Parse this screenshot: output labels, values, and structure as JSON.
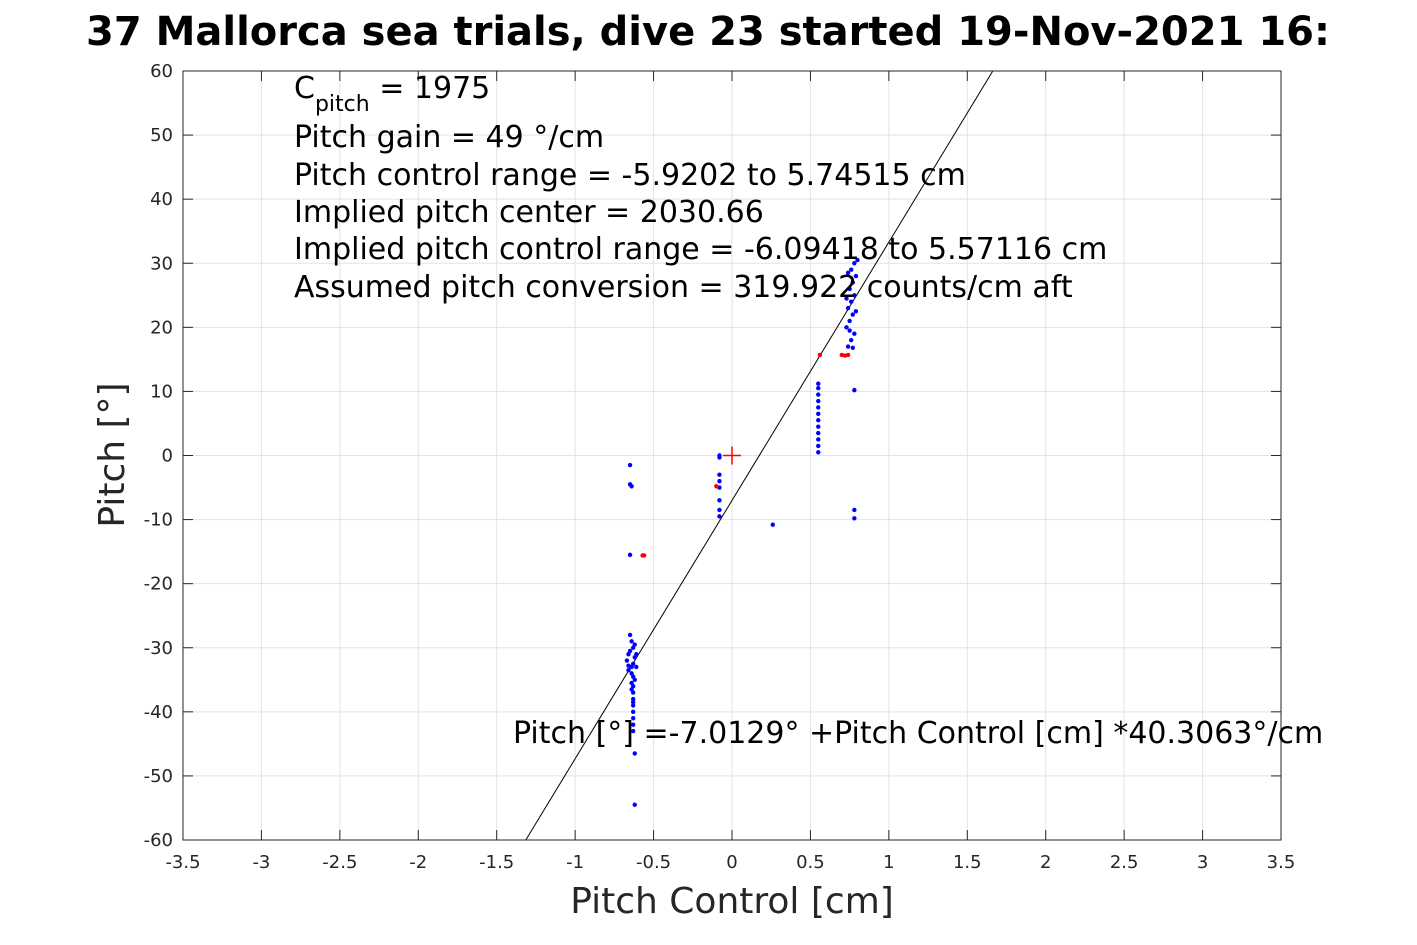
{
  "chart_data": {
    "type": "scatter",
    "title": "37 Mallorca sea trials, dive 23 started 19-Nov-2021 16:",
    "xlabel": "Pitch Control [cm]",
    "ylabel": "Pitch [°]",
    "xlim": [
      -3.5,
      3.5
    ],
    "ylim": [
      -60,
      60
    ],
    "xticks": [
      -3.5,
      -3,
      -2.5,
      -2,
      -1.5,
      -1,
      -0.5,
      0,
      0.5,
      1,
      1.5,
      2,
      2.5,
      3,
      3.5
    ],
    "xtick_labels": [
      "-3.5",
      "-3",
      "-2.5",
      "-2",
      "-1.5",
      "-1",
      "-0.5",
      "0",
      "0.5",
      "1",
      "1.5",
      "2",
      "2.5",
      "3",
      "3.5"
    ],
    "yticks": [
      -60,
      -50,
      -40,
      -30,
      -20,
      -10,
      0,
      10,
      20,
      30,
      40,
      50,
      60
    ],
    "ytick_labels": [
      "-60",
      "-50",
      "-40",
      "-30",
      "-20",
      "-10",
      "0",
      "10",
      "20",
      "30",
      "40",
      "50",
      "60"
    ],
    "grid": true,
    "annotations": {
      "c_pitch_base": "C",
      "c_pitch_sub": "pitch",
      "c_pitch_rest": " = 1975",
      "lines": [
        "Pitch gain = 49 °/cm",
        "Pitch control range = -5.9202 to 5.74515 cm",
        "Implied pitch center = 2030.66",
        "Implied pitch control range = -6.09418 to 5.57116 cm",
        "Assumed pitch conversion = 319.922 counts/cm aft"
      ],
      "fit_equation": "Pitch [°] =-7.0129° +Pitch Control [cm] *40.3063°/cm"
    },
    "fit_line": {
      "intercept": -7.0129,
      "slope": 40.3063,
      "color": "#000000"
    },
    "center_marker": {
      "x": 0,
      "y": 0,
      "color": "#ff0000"
    },
    "series": [
      {
        "color": "#0000ff",
        "points": [
          [
            -0.65,
            -28
          ],
          [
            -0.64,
            -29
          ],
          [
            -0.63,
            -30
          ],
          [
            -0.66,
            -31
          ],
          [
            -0.62,
            -31.5
          ],
          [
            -0.67,
            -32
          ],
          [
            -0.63,
            -32.5
          ],
          [
            -0.61,
            -33
          ],
          [
            -0.66,
            -33.5
          ],
          [
            -0.64,
            -34
          ],
          [
            -0.63,
            -34.5
          ],
          [
            -0.62,
            -35
          ],
          [
            -0.64,
            -35.5
          ],
          [
            -0.63,
            -36
          ],
          [
            -0.63,
            -37
          ],
          [
            -0.63,
            -38
          ],
          [
            -0.63,
            -39
          ],
          [
            -0.63,
            -40
          ],
          [
            -0.63,
            -41
          ],
          [
            -0.63,
            -42
          ],
          [
            -0.63,
            -43
          ],
          [
            -0.62,
            -46.5
          ],
          [
            -0.62,
            -54.5
          ],
          [
            -0.65,
            -30.5
          ],
          [
            -0.62,
            -29.5
          ],
          [
            -0.66,
            -32.8
          ],
          [
            -0.61,
            -31
          ],
          [
            -0.64,
            -36.5
          ],
          [
            -0.63,
            -38.5
          ],
          [
            -0.64,
            -33
          ],
          [
            -0.65,
            -1.5
          ],
          [
            -0.65,
            -4.5
          ],
          [
            -0.64,
            -4.8
          ],
          [
            -0.65,
            -15.5
          ],
          [
            -0.08,
            0
          ],
          [
            -0.08,
            -0.3
          ],
          [
            -0.08,
            -3
          ],
          [
            -0.08,
            -4
          ],
          [
            -0.08,
            -5
          ],
          [
            -0.08,
            -7
          ],
          [
            -0.08,
            -8.5
          ],
          [
            -0.08,
            -9.5
          ],
          [
            0.26,
            -10.8
          ],
          [
            0.55,
            0.5
          ],
          [
            0.55,
            1.5
          ],
          [
            0.55,
            2.5
          ],
          [
            0.55,
            3.5
          ],
          [
            0.55,
            4.5
          ],
          [
            0.55,
            5.5
          ],
          [
            0.55,
            6.5
          ],
          [
            0.55,
            7.5
          ],
          [
            0.55,
            8.5
          ],
          [
            0.55,
            9.5
          ],
          [
            0.55,
            10.5
          ],
          [
            0.55,
            11.2
          ],
          [
            0.74,
            17
          ],
          [
            0.76,
            18
          ],
          [
            0.78,
            19
          ],
          [
            0.73,
            20
          ],
          [
            0.75,
            21
          ],
          [
            0.77,
            22
          ],
          [
            0.74,
            23
          ],
          [
            0.76,
            24
          ],
          [
            0.78,
            25
          ],
          [
            0.75,
            26
          ],
          [
            0.77,
            27
          ],
          [
            0.79,
            28
          ],
          [
            0.76,
            29
          ],
          [
            0.78,
            30
          ],
          [
            0.8,
            30.5
          ],
          [
            0.74,
            28.5
          ],
          [
            0.73,
            24.5
          ],
          [
            0.79,
            22.5
          ],
          [
            0.75,
            19.5
          ],
          [
            0.77,
            16.8
          ],
          [
            0.78,
            10.2
          ],
          [
            0.78,
            -8.5
          ],
          [
            0.78,
            -9.8
          ]
        ]
      },
      {
        "color": "#ff0000",
        "points": [
          [
            -0.56,
            -15.6
          ],
          [
            -0.57,
            -15.6
          ],
          [
            -0.1,
            -4.8
          ],
          [
            0.56,
            15.7
          ],
          [
            0.7,
            15.7
          ],
          [
            0.72,
            15.6
          ],
          [
            0.74,
            15.7
          ]
        ]
      }
    ]
  }
}
